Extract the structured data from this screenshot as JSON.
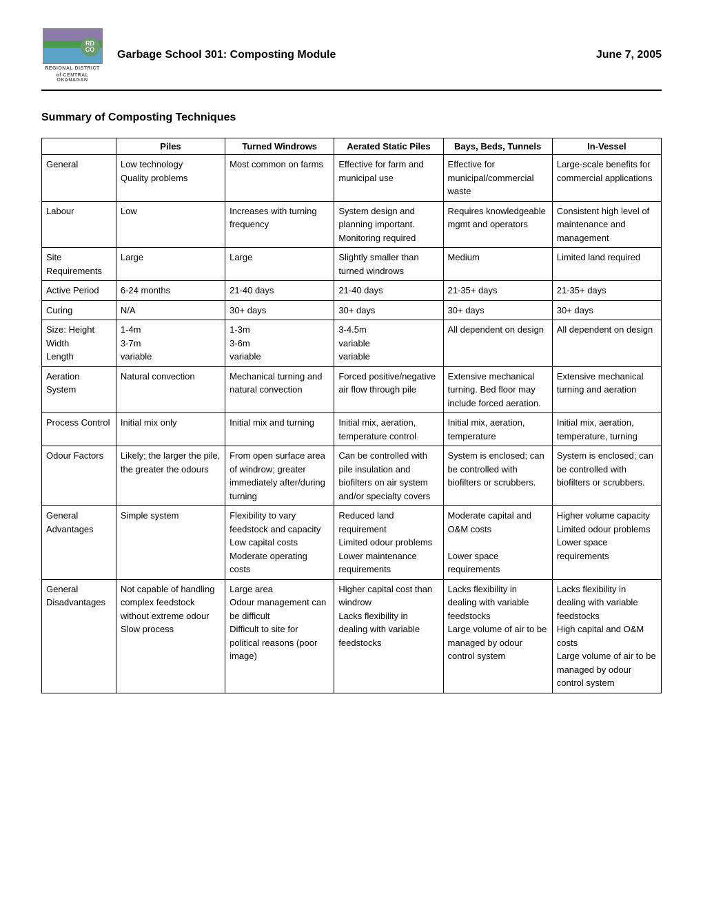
{
  "header": {
    "title": "Garbage School 301:  Composting Module",
    "date": "June 7, 2005",
    "logo_text_1": "REGIONAL DISTRICT",
    "logo_text_2": "of CENTRAL OKANAGAN",
    "logo_badge": "RD CO"
  },
  "subtitle": "Summary of Composting Techniques",
  "table": {
    "columns": [
      "Piles",
      "Turned Windrows",
      "Aerated Static Piles",
      "Bays, Beds, Tunnels",
      "In-Vessel"
    ],
    "rows": [
      {
        "label": "General",
        "cells": [
          "Low technology\nQuality problems",
          "Most common on farms",
          "Effective for farm and municipal use",
          "Effective for municipal/commercial waste",
          "Large-scale benefits for commercial applications"
        ]
      },
      {
        "label": "Labour",
        "cells": [
          "Low",
          "Increases with turning frequency",
          "System design and planning important. Monitoring required",
          "Requires knowledgeable mgmt and operators",
          "Consistent high level of maintenance and management"
        ]
      },
      {
        "label": "Site Requirements",
        "cells": [
          "Large",
          "Large",
          "Slightly smaller than turned windrows",
          "Medium",
          "Limited land required"
        ]
      },
      {
        "label": "Active Period",
        "cells": [
          "6-24 months",
          "21-40 days",
          "21-40 days",
          "21-35+ days",
          "21-35+ days"
        ]
      },
      {
        "label": "Curing",
        "cells": [
          "N/A",
          "30+ days",
          "30+ days",
          "30+ days",
          "30+ days"
        ]
      },
      {
        "label": "Size:  Height\nWidth\nLength",
        "cells": [
          "1-4m\n3-7m\nvariable",
          "1-3m\n3-6m\nvariable",
          "3-4.5m\nvariable\nvariable",
          "All dependent on design",
          "All dependent on design"
        ]
      },
      {
        "label": "Aeration System",
        "cells": [
          "Natural convection",
          "Mechanical turning and natural convection",
          "Forced positive/negative air flow through pile",
          "Extensive mechanical turning. Bed floor may include forced aeration.",
          "Extensive mechanical turning and aeration"
        ]
      },
      {
        "label": "Process Control",
        "cells": [
          "Initial mix only",
          "Initial mix and turning",
          "Initial mix, aeration, temperature control",
          "Initial mix, aeration, temperature",
          "Initial mix, aeration, temperature, turning"
        ]
      },
      {
        "label": "Odour Factors",
        "cells": [
          "Likely; the larger the pile, the greater the odours",
          "From open surface area of windrow; greater immediately after/during turning",
          "Can be controlled with pile insulation and biofilters on air system and/or specialty covers",
          "System is enclosed; can be controlled with biofilters or scrubbers.",
          "System is enclosed; can be controlled with biofilters or scrubbers."
        ]
      },
      {
        "label": "General Advantages",
        "cells": [
          "Simple system",
          "Flexibility to vary feedstock and capacity\nLow capital costs\nModerate operating costs",
          "Reduced land requirement\nLimited odour problems\nLower maintenance requirements",
          "Moderate capital and O&M costs\n\nLower space requirements",
          "Higher volume capacity\nLimited odour problems\nLower space requirements"
        ]
      },
      {
        "label": "General Disadvantages",
        "cells": [
          "Not capable of handling complex feedstock without extreme odour\nSlow process",
          "Large area\nOdour management can be difficult\nDifficult to site for political reasons (poor image)",
          "Higher capital cost than windrow\nLacks flexibility in dealing with variable feedstocks",
          "Lacks flexibility in dealing with variable feedstocks\nLarge volume of air to be managed by odour control system",
          "Lacks flexibility in dealing with variable feedstocks\nHigh capital and O&M costs\nLarge volume of air to be managed by odour control system"
        ]
      }
    ]
  }
}
